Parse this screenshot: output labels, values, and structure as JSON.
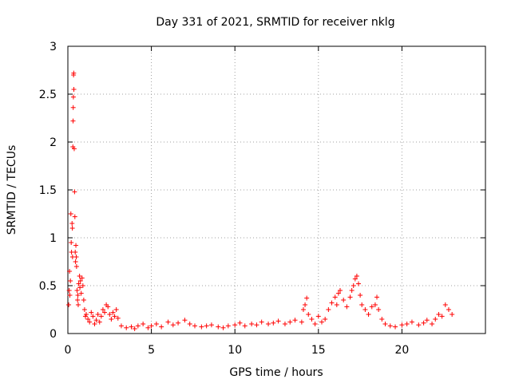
{
  "chart_data": {
    "type": "scatter",
    "title": "Day 331 of 2021, SRMTID for receiver nklg",
    "xlabel": "GPS time / hours",
    "ylabel": "SRMTID / TECUs",
    "xlim": [
      0,
      25
    ],
    "ylim": [
      0,
      3
    ],
    "x_ticks": [
      0,
      5,
      10,
      15,
      20
    ],
    "x_tick_labels": [
      "0",
      "5",
      "10",
      "15",
      "20"
    ],
    "y_ticks": [
      0,
      0.5,
      1,
      1.5,
      2,
      2.5,
      3
    ],
    "y_tick_labels": [
      "0",
      "0.5",
      "1",
      "1.5",
      "2",
      "2.5",
      "3"
    ],
    "grid": true,
    "marker": "+",
    "color": "#ff0000",
    "series": [
      {
        "name": "SRMTID",
        "points": [
          [
            0.05,
            0.3
          ],
          [
            0.08,
            0.45
          ],
          [
            0.1,
            0.65
          ],
          [
            0.12,
            0.4
          ],
          [
            0.15,
            0.55
          ],
          [
            0.18,
            1.25
          ],
          [
            0.2,
            0.95
          ],
          [
            0.22,
            0.85
          ],
          [
            0.25,
            1.15
          ],
          [
            0.27,
            1.1
          ],
          [
            0.28,
            0.8
          ],
          [
            0.3,
            1.95
          ],
          [
            0.31,
            2.22
          ],
          [
            0.32,
            2.36
          ],
          [
            0.33,
            2.47
          ],
          [
            0.34,
            2.7
          ],
          [
            0.35,
            2.72
          ],
          [
            0.36,
            2.55
          ],
          [
            0.38,
            1.93
          ],
          [
            0.4,
            1.48
          ],
          [
            0.42,
            1.22
          ],
          [
            0.44,
            0.85
          ],
          [
            0.46,
            0.75
          ],
          [
            0.48,
            0.92
          ],
          [
            0.5,
            0.8
          ],
          [
            0.52,
            0.7
          ],
          [
            0.55,
            0.45
          ],
          [
            0.58,
            0.35
          ],
          [
            0.6,
            0.4
          ],
          [
            0.62,
            0.3
          ],
          [
            0.65,
            0.52
          ],
          [
            0.7,
            0.6
          ],
          [
            0.72,
            0.48
          ],
          [
            0.75,
            0.55
          ],
          [
            0.8,
            0.42
          ],
          [
            0.85,
            0.58
          ],
          [
            0.9,
            0.5
          ],
          [
            0.95,
            0.35
          ],
          [
            1.0,
            0.25
          ],
          [
            1.05,
            0.18
          ],
          [
            1.1,
            0.2
          ],
          [
            1.2,
            0.15
          ],
          [
            1.3,
            0.12
          ],
          [
            1.4,
            0.22
          ],
          [
            1.5,
            0.18
          ],
          [
            1.6,
            0.1
          ],
          [
            1.7,
            0.14
          ],
          [
            1.8,
            0.2
          ],
          [
            1.9,
            0.12
          ],
          [
            2.0,
            0.18
          ],
          [
            2.1,
            0.25
          ],
          [
            2.2,
            0.22
          ],
          [
            2.3,
            0.3
          ],
          [
            2.4,
            0.28
          ],
          [
            2.5,
            0.2
          ],
          [
            2.6,
            0.15
          ],
          [
            2.7,
            0.22
          ],
          [
            2.8,
            0.18
          ],
          [
            2.9,
            0.25
          ],
          [
            3.0,
            0.16
          ],
          [
            3.2,
            0.08
          ],
          [
            3.5,
            0.06
          ],
          [
            3.8,
            0.07
          ],
          [
            4.0,
            0.05
          ],
          [
            4.2,
            0.08
          ],
          [
            4.5,
            0.1
          ],
          [
            4.8,
            0.06
          ],
          [
            5.0,
            0.08
          ],
          [
            5.3,
            0.1
          ],
          [
            5.6,
            0.07
          ],
          [
            6.0,
            0.12
          ],
          [
            6.3,
            0.09
          ],
          [
            6.6,
            0.11
          ],
          [
            7.0,
            0.14
          ],
          [
            7.3,
            0.1
          ],
          [
            7.6,
            0.08
          ],
          [
            8.0,
            0.07
          ],
          [
            8.3,
            0.08
          ],
          [
            8.6,
            0.09
          ],
          [
            9.0,
            0.07
          ],
          [
            9.3,
            0.06
          ],
          [
            9.6,
            0.08
          ],
          [
            10.0,
            0.09
          ],
          [
            10.3,
            0.11
          ],
          [
            10.6,
            0.08
          ],
          [
            11.0,
            0.1
          ],
          [
            11.3,
            0.09
          ],
          [
            11.6,
            0.12
          ],
          [
            12.0,
            0.1
          ],
          [
            12.3,
            0.11
          ],
          [
            12.6,
            0.13
          ],
          [
            13.0,
            0.1
          ],
          [
            13.3,
            0.12
          ],
          [
            13.6,
            0.14
          ],
          [
            14.0,
            0.12
          ],
          [
            14.1,
            0.25
          ],
          [
            14.2,
            0.3
          ],
          [
            14.3,
            0.37
          ],
          [
            14.4,
            0.2
          ],
          [
            14.6,
            0.15
          ],
          [
            14.8,
            0.1
          ],
          [
            15.0,
            0.18
          ],
          [
            15.2,
            0.12
          ],
          [
            15.4,
            0.15
          ],
          [
            15.6,
            0.25
          ],
          [
            15.8,
            0.32
          ],
          [
            16.0,
            0.38
          ],
          [
            16.1,
            0.3
          ],
          [
            16.2,
            0.42
          ],
          [
            16.3,
            0.45
          ],
          [
            16.5,
            0.35
          ],
          [
            16.7,
            0.28
          ],
          [
            16.9,
            0.38
          ],
          [
            17.0,
            0.45
          ],
          [
            17.1,
            0.5
          ],
          [
            17.2,
            0.57
          ],
          [
            17.3,
            0.6
          ],
          [
            17.4,
            0.52
          ],
          [
            17.5,
            0.4
          ],
          [
            17.6,
            0.3
          ],
          [
            17.8,
            0.25
          ],
          [
            18.0,
            0.2
          ],
          [
            18.2,
            0.28
          ],
          [
            18.4,
            0.3
          ],
          [
            18.5,
            0.38
          ],
          [
            18.6,
            0.25
          ],
          [
            18.8,
            0.15
          ],
          [
            19.0,
            0.1
          ],
          [
            19.3,
            0.08
          ],
          [
            19.6,
            0.07
          ],
          [
            20.0,
            0.09
          ],
          [
            20.3,
            0.1
          ],
          [
            20.6,
            0.12
          ],
          [
            21.0,
            0.09
          ],
          [
            21.3,
            0.11
          ],
          [
            21.5,
            0.14
          ],
          [
            21.8,
            0.1
          ],
          [
            22.0,
            0.15
          ],
          [
            22.2,
            0.2
          ],
          [
            22.4,
            0.18
          ],
          [
            22.6,
            0.3
          ],
          [
            22.8,
            0.25
          ],
          [
            23.0,
            0.2
          ]
        ]
      }
    ]
  }
}
